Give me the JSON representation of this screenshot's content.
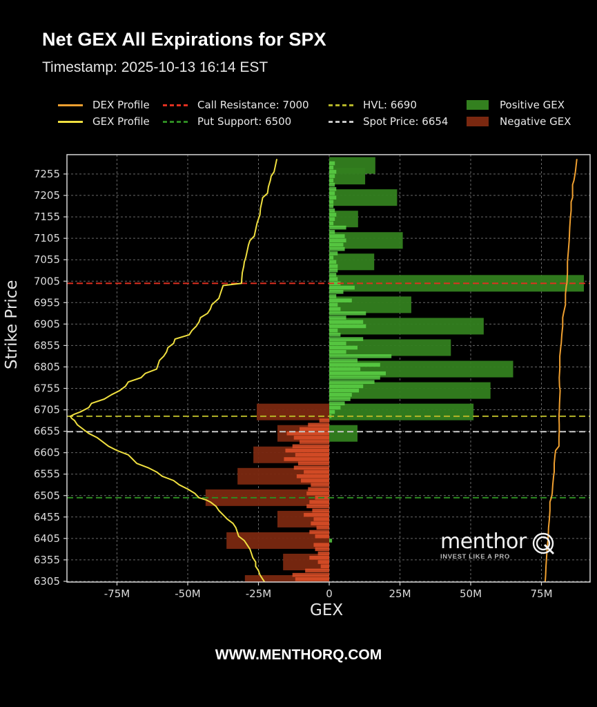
{
  "header": {
    "title": "Net GEX All Expirations for SPX",
    "timestamp": "Timestamp: 2025-10-13 16:14 EST"
  },
  "legend": {
    "items": [
      {
        "label": "DEX Profile",
        "kind": "line",
        "color": "#f0a030",
        "dash": false
      },
      {
        "label": "GEX Profile",
        "kind": "line",
        "color": "#f0e040",
        "dash": false
      },
      {
        "label": "Call Resistance: 7000",
        "kind": "line",
        "color": "#e03020",
        "dash": true
      },
      {
        "label": "Put Support: 6500",
        "kind": "line",
        "color": "#2e8b22",
        "dash": true
      },
      {
        "label": "HVL: 6690",
        "kind": "line",
        "color": "#b5b528",
        "dash": true
      },
      {
        "label": "Spot Price: 6654",
        "kind": "line",
        "color": "#c8c8c8",
        "dash": true
      },
      {
        "label": "Positive GEX",
        "kind": "box",
        "color": "#33801f"
      },
      {
        "label": "Negative GEX",
        "kind": "box",
        "color": "#7a2810"
      }
    ]
  },
  "axes": {
    "ylabel": "Strike Price",
    "xlabel": "GEX"
  },
  "footer": {
    "url": "WWW.MENTHORQ.COM"
  },
  "watermark": {
    "brand": "menthor",
    "tagline": "INVEST LIKE A PRO",
    "icon": "q-logo-icon"
  },
  "colors": {
    "background": "#000000",
    "positive_bar": "#33801f",
    "positive_bar_fine": "#5fd84a",
    "negative_bar": "#7a2810",
    "negative_bar_fine": "#e8542a",
    "grid": "#6a6a6a",
    "axis": "#d8d8d8"
  },
  "chart_data": {
    "type": "bar",
    "orientation": "horizontal",
    "title": "Net GEX All Expirations for SPX",
    "subtitle": "Timestamp: 2025-10-13 16:14 EST",
    "xlabel": "GEX",
    "ylabel": "Strike Price",
    "xlim": [
      -92,
      92
    ],
    "ylim": [
      6300,
      7290
    ],
    "x_unit": "M",
    "xticks": [
      -75,
      -50,
      -25,
      0,
      25,
      50,
      75
    ],
    "xtick_labels": [
      "-75M",
      "-50M",
      "-25M",
      "0",
      "25M",
      "50M",
      "75M"
    ],
    "yticks": [
      7255,
      7205,
      7155,
      7105,
      7055,
      7005,
      6955,
      6905,
      6855,
      6805,
      6755,
      6705,
      6655,
      6605,
      6555,
      6505,
      6455,
      6405,
      6355,
      6305
    ],
    "grid": true,
    "legend_position": "top",
    "series": [
      {
        "name": "Net GEX (50-pt strikes)",
        "strikes": [
          7275,
          7250,
          7200,
          7150,
          7100,
          7050,
          7000,
          6950,
          6900,
          6850,
          6800,
          6750,
          6700,
          6650,
          6700,
          6650,
          6600,
          6550,
          6500,
          6450,
          6400,
          6350,
          6300
        ],
        "values": [
          16.3,
          12.7,
          24.0,
          10.2,
          26.0,
          15.9,
          90.0,
          29.0,
          54.6,
          43.0,
          65.0,
          57.0,
          51.0,
          10.0,
          -25.6,
          -18.3,
          -26.8,
          -32.4,
          -43.7,
          -18.3,
          -36.3,
          -16.3,
          -29.8
        ]
      },
      {
        "name": "Net GEX (5-pt strikes)",
        "strikes": [
          7280,
          7270,
          7260,
          7250,
          7240,
          7230,
          7220,
          7210,
          7200,
          7190,
          7180,
          7170,
          7160,
          7150,
          7140,
          7130,
          7120,
          7110,
          7100,
          7090,
          7080,
          7070,
          7060,
          7050,
          7040,
          7030,
          7020,
          7010,
          7000,
          6990,
          6980,
          6970,
          6960,
          6950,
          6940,
          6930,
          6920,
          6910,
          6900,
          6890,
          6880,
          6870,
          6860,
          6850,
          6840,
          6830,
          6820,
          6810,
          6800,
          6790,
          6780,
          6770,
          6760,
          6750,
          6740,
          6730,
          6720,
          6710,
          6700,
          6690,
          6680,
          6670,
          6660,
          6650,
          6640,
          6630,
          6620,
          6610,
          6600,
          6590,
          6580,
          6570,
          6560,
          6550,
          6540,
          6530,
          6520,
          6510,
          6500,
          6490,
          6480,
          6470,
          6460,
          6450,
          6440,
          6430,
          6420,
          6410,
          6400,
          6390,
          6380,
          6370,
          6360,
          6350,
          6340,
          6330,
          6320,
          6310
        ],
        "values": [
          2.0,
          1.5,
          2.5,
          2.0,
          1.5,
          2.0,
          2.5,
          2.0,
          2.5,
          1.5,
          1.5,
          2.0,
          2.5,
          2.0,
          1.5,
          6.0,
          2.0,
          5.5,
          6.0,
          5.0,
          5.5,
          3.0,
          1.5,
          2.5,
          3.0,
          3.0,
          2.5,
          3.0,
          4.0,
          9.0,
          5.0,
          2.5,
          8.0,
          3.0,
          4.0,
          13.0,
          6.0,
          12.0,
          13.0,
          3.0,
          4.0,
          12.0,
          6.0,
          10.0,
          6.0,
          22.0,
          10.0,
          18.0,
          11.0,
          20.0,
          18.0,
          16.0,
          12.0,
          10.5,
          8.0,
          7.5,
          5.5,
          4.0,
          2.0,
          0.8,
          -3.5,
          -7.5,
          -10.5,
          -15.0,
          -12.5,
          -10.5,
          -13.0,
          -15.5,
          -12.0,
          -16.0,
          -11.0,
          -12.5,
          -9.0,
          -11.5,
          -10.0,
          -6.5,
          -7.5,
          -8.0,
          -5.0,
          -7.0,
          -8.0,
          -6.0,
          -9.0,
          -5.5,
          -6.5,
          -4.5,
          -7.0,
          -5.0,
          1.0,
          -5.5,
          -5.0,
          -4.0,
          -7.0,
          -4.0,
          -3.0,
          -8.5,
          -13.0,
          -12.0
        ]
      },
      {
        "name": "GEX Profile",
        "kind": "line",
        "color": "#f0e040",
        "strikes": [
          7290,
          7275,
          7260,
          7250,
          7240,
          7225,
          7210,
          7200,
          7190,
          7175,
          7160,
          7150,
          7140,
          7125,
          7110,
          7100,
          7090,
          7075,
          7060,
          7050,
          7040,
          7025,
          7010,
          7000,
          6995,
          6985,
          6975,
          6965,
          6950,
          6940,
          6930,
          6920,
          6910,
          6900,
          6890,
          6880,
          6870,
          6860,
          6850,
          6840,
          6830,
          6820,
          6810,
          6800,
          6790,
          6780,
          6770,
          6760,
          6750,
          6740,
          6730,
          6720,
          6710,
          6700,
          6695,
          6690,
          6685,
          6680,
          6670,
          6660,
          6650,
          6640,
          6630,
          6620,
          6610,
          6600,
          6590,
          6580,
          6570,
          6560,
          6550,
          6540,
          6530,
          6520,
          6510,
          6500,
          6495,
          6490,
          6480,
          6470,
          6460,
          6450,
          6440,
          6430,
          6420,
          6410,
          6400,
          6390,
          6380,
          6370,
          6360,
          6350,
          6340,
          6330,
          6320,
          6310,
          6300
        ],
        "values": [
          -18.5,
          -19.0,
          -19.5,
          -20.5,
          -20.8,
          -21.5,
          -21.8,
          -23.5,
          -23.8,
          -24.3,
          -24.5,
          -25.0,
          -25.5,
          -26.0,
          -26.5,
          -28.0,
          -28.5,
          -29.0,
          -29.5,
          -30.0,
          -30.2,
          -30.7,
          -30.9,
          -31.0,
          -37.5,
          -38.0,
          -38.5,
          -39.0,
          -41.5,
          -42.0,
          -43.0,
          -45.5,
          -46.0,
          -47.0,
          -48.5,
          -49.5,
          -54.5,
          -55.0,
          -57.0,
          -57.5,
          -58.5,
          -60.0,
          -60.5,
          -61.0,
          -65.0,
          -66.5,
          -71.0,
          -72.0,
          -74.0,
          -77.0,
          -79.5,
          -84.0,
          -85.0,
          -88.0,
          -90.0,
          -91.5,
          -91.0,
          -90.0,
          -89.0,
          -87.0,
          -85.0,
          -82.0,
          -80.0,
          -78.0,
          -75.0,
          -71.0,
          -69.5,
          -68.0,
          -64.0,
          -61.0,
          -59.0,
          -55.0,
          -53.0,
          -50.0,
          -47.5,
          -46.0,
          -43.5,
          -42.0,
          -40.0,
          -39.0,
          -37.5,
          -36.0,
          -34.0,
          -33.0,
          -32.5,
          -32.0,
          -30.0,
          -29.0,
          -28.0,
          -27.5,
          -27.0,
          -26.0,
          -26.0,
          -25.0,
          -24.5,
          -23.5,
          -22.5
        ]
      },
      {
        "name": "DEX Profile",
        "kind": "line",
        "color": "#f0a030",
        "strikes": [
          7290,
          7260,
          7240,
          7230,
          7200,
          7190,
          7170,
          7150,
          7130,
          7100,
          7075,
          7050,
          7025,
          7000,
          6995,
          6975,
          6950,
          6930,
          6920,
          6900,
          6880,
          6860,
          6850,
          6830,
          6800,
          6780,
          6760,
          6750,
          6720,
          6700,
          6690,
          6670,
          6654,
          6640,
          6620,
          6610,
          6600,
          6580,
          6560,
          6550,
          6530,
          6510,
          6500,
          6490,
          6470,
          6450,
          6430,
          6410,
          6400,
          6380,
          6360,
          6340,
          6320,
          6300
        ],
        "values": [
          87.5,
          87.0,
          86.5,
          86.0,
          86.0,
          85.5,
          85.5,
          85.2,
          85.0,
          84.8,
          84.5,
          84.2,
          84.2,
          84.0,
          83.8,
          83.5,
          83.5,
          82.8,
          82.5,
          82.5,
          82.2,
          82.0,
          81.8,
          81.5,
          81.5,
          81.3,
          81.4,
          81.6,
          81.4,
          81.3,
          81.2,
          81.3,
          81.3,
          81.2,
          81.2,
          80.0,
          79.8,
          79.5,
          79.5,
          79.3,
          79.0,
          78.8,
          78.5,
          78.0,
          78.0,
          77.8,
          77.5,
          77.4,
          77.3,
          77.0,
          76.8,
          76.6,
          76.5,
          76.3
        ]
      }
    ],
    "reference_lines": [
      {
        "name": "Call Resistance",
        "strike": 7000,
        "color": "#e03020"
      },
      {
        "name": "HVL",
        "strike": 6690,
        "color": "#b5b528"
      },
      {
        "name": "Spot Price",
        "strike": 6654,
        "color": "#c8c8c8"
      },
      {
        "name": "Put Support",
        "strike": 6500,
        "color": "#2e8b22"
      }
    ]
  }
}
